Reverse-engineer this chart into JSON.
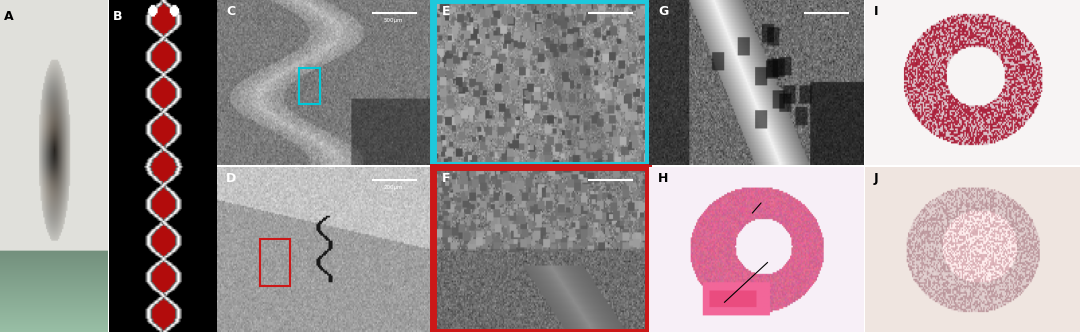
{
  "figsize": [
    10.8,
    3.32
  ],
  "dpi": 100,
  "background_color": "#ffffff",
  "col_widths": [
    1.05,
    1.05,
    2.1,
    2.1,
    2.1,
    2.1
  ],
  "wspace": 0.008,
  "hspace": 0.008,
  "panels": {
    "A": {
      "bg": "#c8c5be",
      "label_color": "#000000",
      "border": null,
      "border_width": 0
    },
    "B": {
      "bg": "#080808",
      "label_color": "#ffffff",
      "border": null,
      "border_width": 0
    },
    "C": {
      "bg": "#787878",
      "label_color": "#ffffff",
      "border": null,
      "border_width": 0
    },
    "D": {
      "bg": "#909090",
      "label_color": "#ffffff",
      "border": null,
      "border_width": 0
    },
    "E": {
      "bg": "#909090",
      "label_color": "#ffffff",
      "border": "#1ec8dc",
      "border_width": 5
    },
    "F": {
      "bg": "#888888",
      "label_color": "#ffffff",
      "border": "#cc1818",
      "border_width": 5
    },
    "G": {
      "bg": "#686868",
      "label_color": "#ffffff",
      "border": null,
      "border_width": 0
    },
    "H": {
      "bg": "#f5eaf2",
      "label_color": "#000000",
      "border": null,
      "border_width": 0
    },
    "I": {
      "bg": "#f8f4f4",
      "label_color": "#000000",
      "border": null,
      "border_width": 0
    },
    "J": {
      "bg": "#ece4dc",
      "label_color": "#000000",
      "border": null,
      "border_width": 0
    }
  }
}
